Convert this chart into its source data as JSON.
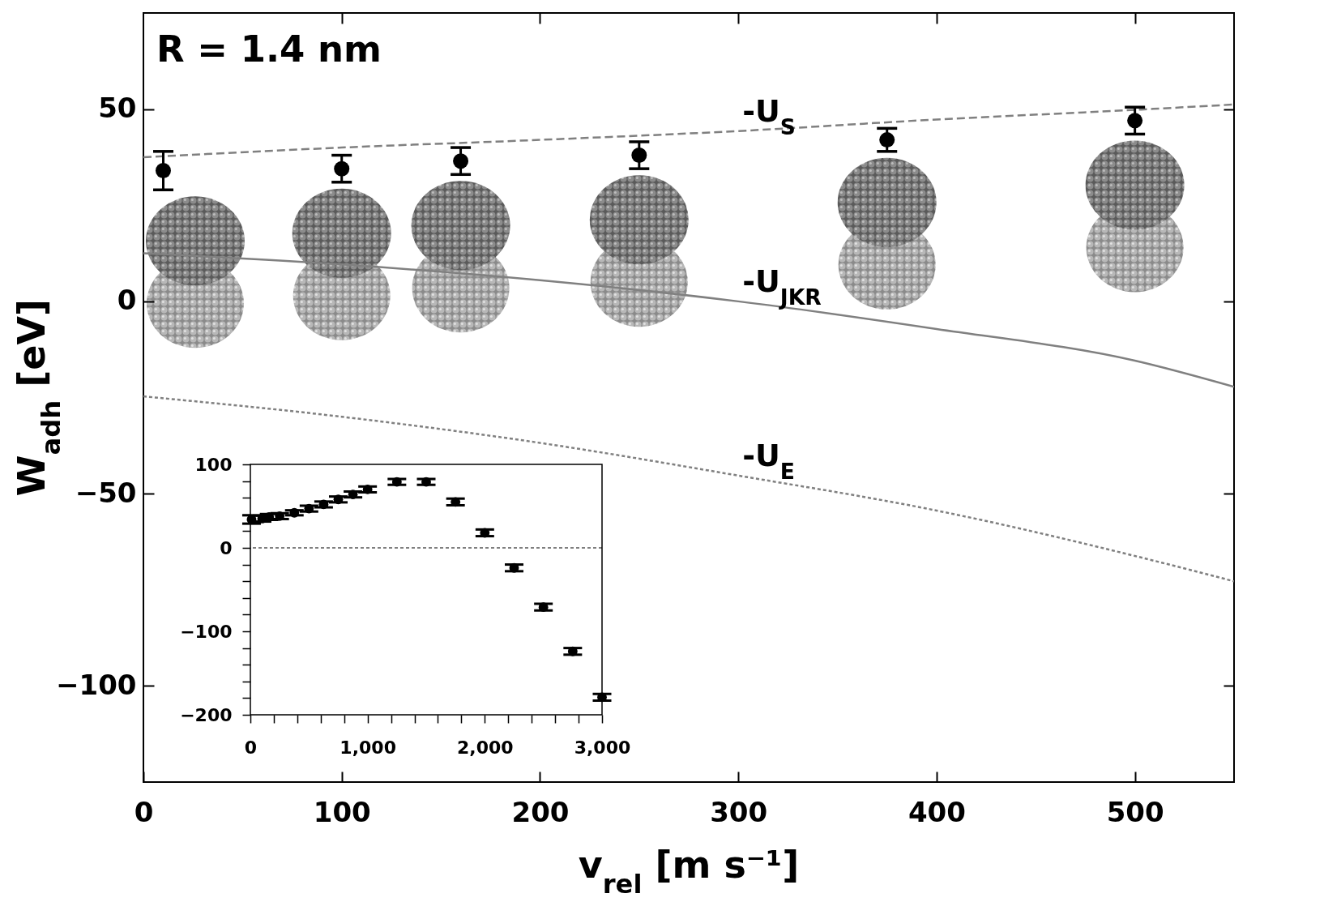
{
  "chart_data": [
    {
      "type": "scatter",
      "xlabel": "v$_{rel}$ [m s⁻¹]",
      "ylabel": "W$_{adh}$ [eV]",
      "annotations": [
        "R = 1.4 nm"
      ],
      "xlim": [
        0,
        550
      ],
      "xticks": [
        0,
        100,
        200,
        300,
        400,
        500
      ],
      "ylim": [
        -125,
        75
      ],
      "yticks": [
        -100,
        -50,
        0,
        50
      ],
      "series": [
        {
          "type": "scatter",
          "color": "#000000",
          "marker": "circle",
          "x": [
            10,
            100,
            160,
            250,
            375,
            500
          ],
          "values": [
            34,
            34.5,
            36.5,
            38,
            42,
            47
          ],
          "errors": [
            5,
            3.5,
            3.5,
            3.5,
            3,
            3.5
          ]
        },
        {
          "type": "line",
          "name": "-U$_{S}$",
          "color": "#808080",
          "line_style": "dashed",
          "x": [
            0,
            100,
            200,
            300,
            400,
            500,
            550
          ],
          "values": [
            37.5,
            40,
            42,
            44.3,
            47.3,
            49.8,
            51.2
          ]
        },
        {
          "type": "line",
          "name": "-U$_{JKR}$",
          "color": "#808080",
          "line_style": "solid",
          "x": [
            0,
            100,
            200,
            300,
            400,
            500,
            550
          ],
          "values": [
            12.5,
            9.6,
            5.5,
            0,
            -7.2,
            -15.4,
            -22.2
          ]
        },
        {
          "type": "line",
          "name": "-U$_{E}$",
          "color": "#808080",
          "line_style": "dotted",
          "x": [
            0,
            100,
            200,
            300,
            400,
            500,
            550
          ],
          "values": [
            -24.7,
            -30,
            -36.8,
            -45.3,
            -54.4,
            -66.2,
            -72.8
          ]
        }
      ]
    },
    {
      "type": "scatter",
      "color": "#000000",
      "marker": "circle",
      "x": [
        10,
        100,
        160,
        250,
        375,
        500,
        625,
        750,
        875,
        1000,
        1250,
        1500,
        1750,
        2000,
        2250,
        2500,
        2750,
        3000
      ],
      "values": [
        34,
        35,
        37,
        38,
        42,
        47,
        52,
        58,
        64,
        70,
        79,
        79,
        55,
        18,
        -24,
        -71,
        -124,
        -179
      ],
      "errors": [
        5,
        3.5,
        3.5,
        3.5,
        3,
        3.5,
        3.5,
        3.5,
        3.5,
        3.5,
        3.5,
        3.5,
        4,
        4,
        4,
        4,
        4,
        4
      ],
      "xlim": [
        0,
        3000
      ],
      "xticks": [
        0,
        {
          "value": 200,
          "label": null
        },
        {
          "value": 400,
          "label": null
        },
        {
          "value": 600,
          "label": null
        },
        {
          "value": 800,
          "label": null
        },
        {
          "value": 1000,
          "label": "1,000"
        },
        {
          "value": 1200,
          "label": null
        },
        {
          "value": 1400,
          "label": null
        },
        {
          "value": 1600,
          "label": null
        },
        {
          "value": 1800,
          "label": null
        },
        {
          "value": 2000,
          "label": "2,000"
        },
        {
          "value": 2200,
          "label": null
        },
        {
          "value": 2400,
          "label": null
        },
        {
          "value": 2600,
          "label": null
        },
        {
          "value": 2800,
          "label": null
        },
        {
          "value": 3000,
          "label": "3,000"
        }
      ],
      "ylim": [
        -200,
        100
      ],
      "yticks": [
        -200,
        {
          "value": -180,
          "label": null
        },
        {
          "value": -160,
          "label": null
        },
        {
          "value": -140,
          "label": null
        },
        {
          "value": -120,
          "label": null
        },
        -100,
        {
          "value": -80,
          "label": null
        },
        {
          "value": -60,
          "label": null
        },
        {
          "value": -40,
          "label": null
        },
        {
          "value": -20,
          "label": null
        },
        0,
        {
          "value": 20,
          "label": null
        },
        {
          "value": 40,
          "label": null
        },
        {
          "value": 60,
          "label": null
        },
        {
          "value": 80,
          "label": null
        },
        100
      ],
      "ref_lines": [
        {
          "axis": "y",
          "value": 0,
          "line_style": "dotted",
          "color": "#000000"
        }
      ]
    }
  ]
}
